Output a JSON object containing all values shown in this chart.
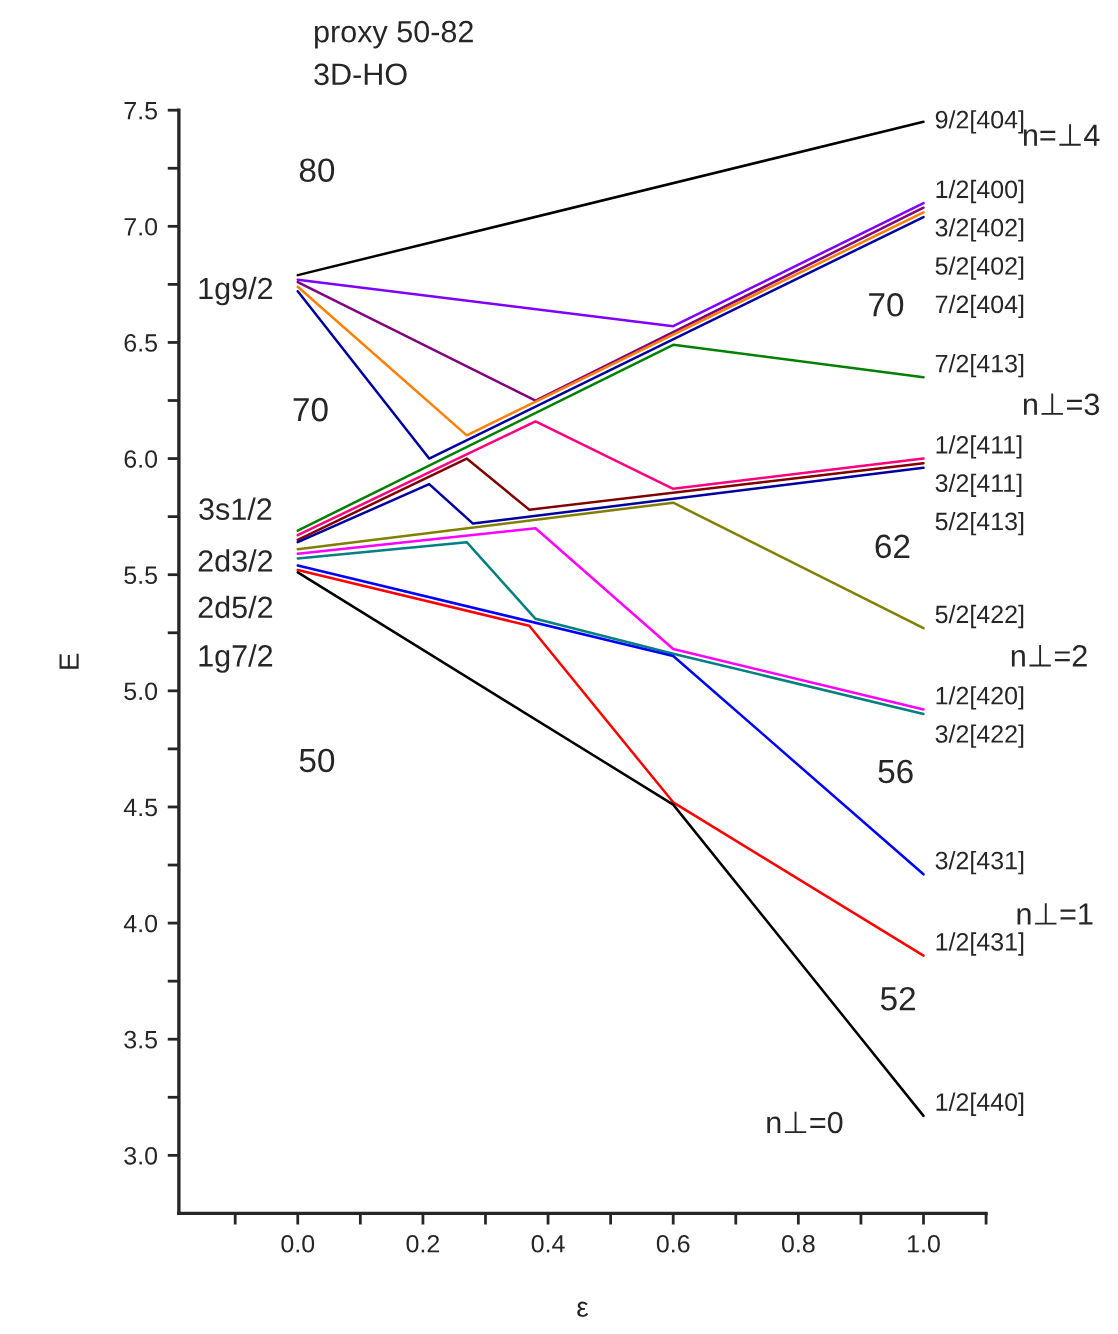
{
  "chart_data": {
    "type": "line",
    "xlabel": "ε",
    "ylabel": "E",
    "xlim": [
      -0.19,
      1.1
    ],
    "ylim": [
      2.75,
      7.5
    ],
    "xticks": [
      {
        "value": -0.1,
        "label": null
      },
      {
        "value": 0.0,
        "label": "0.0"
      },
      {
        "value": 0.1,
        "label": null
      },
      0.2,
      {
        "value": 0.3,
        "label": null
      },
      0.4,
      {
        "value": 0.5,
        "label": null
      },
      0.6,
      {
        "value": 0.7,
        "label": null
      },
      0.8,
      {
        "value": 0.9,
        "label": null
      },
      {
        "value": 1.0,
        "label": "1.0"
      },
      {
        "value": 1.1,
        "label": null
      }
    ],
    "yticks": [
      {
        "value": 3.0,
        "label": "3.0"
      },
      {
        "value": 3.25,
        "label": null
      },
      3.5,
      {
        "value": 3.75,
        "label": null
      },
      {
        "value": 4.0,
        "label": "4.0"
      },
      {
        "value": 4.25,
        "label": null
      },
      4.5,
      {
        "value": 4.75,
        "label": null
      },
      {
        "value": 5.0,
        "label": "5.0"
      },
      {
        "value": 5.25,
        "label": null
      },
      5.5,
      {
        "value": 5.75,
        "label": null
      },
      {
        "value": 6.0,
        "label": "6.0"
      },
      {
        "value": 6.25,
        "label": null
      },
      6.5,
      {
        "value": 6.75,
        "label": null
      },
      {
        "value": 7.0,
        "label": "7.0"
      },
      {
        "value": 7.25,
        "label": null
      },
      7.5
    ],
    "grid": false,
    "legend": false,
    "marker": "none",
    "line_style": "solid",
    "series": [
      {
        "name": "9/2[404]",
        "color": "#000000",
        "x": [
          0,
          1
        ],
        "values": [
          6.79,
          7.45
        ]
      },
      {
        "name": "1/2[400]",
        "color": "#8000ff",
        "x": [
          0,
          0.6,
          1
        ],
        "values": [
          6.77,
          6.57,
          7.1
        ]
      },
      {
        "name": "3/2[402]",
        "color": "#800080",
        "x": [
          0,
          0.38,
          1
        ],
        "values": [
          6.76,
          6.25,
          7.08
        ]
      },
      {
        "name": "5/2[402]",
        "color": "#ff8000",
        "x": [
          0,
          0.27,
          1
        ],
        "values": [
          6.74,
          6.1,
          7.06
        ]
      },
      {
        "name": "7/2[404]",
        "color": "#0000a0",
        "x": [
          0,
          0.21,
          1
        ],
        "values": [
          6.72,
          6.0,
          7.04
        ]
      },
      {
        "name": "7/2[413]",
        "color": "#008000",
        "x": [
          0,
          0.6,
          1
        ],
        "values": [
          5.69,
          6.49,
          6.35
        ]
      },
      {
        "name": "1/2[411]",
        "color": "#ff0080",
        "x": [
          0,
          0.38,
          0.6,
          1
        ],
        "values": [
          5.67,
          6.16,
          5.87,
          6.0
        ]
      },
      {
        "name": "3/2[411]",
        "color": "#800000",
        "x": [
          0,
          0.27,
          0.37,
          1
        ],
        "values": [
          5.65,
          6.0,
          5.78,
          5.98
        ]
      },
      {
        "name": "5/2[413]",
        "color": "#0000a0",
        "x": [
          0,
          0.21,
          0.28,
          1
        ],
        "values": [
          5.64,
          5.89,
          5.72,
          5.96
        ]
      },
      {
        "name": "5/2[422]",
        "color": "#808000",
        "x": [
          0,
          0.6,
          1
        ],
        "values": [
          5.61,
          5.81,
          5.27
        ]
      },
      {
        "name": "1/2[420]",
        "color": "#ff00ff",
        "x": [
          0,
          0.38,
          0.6,
          1
        ],
        "values": [
          5.59,
          5.7,
          5.18,
          4.92
        ]
      },
      {
        "name": "3/2[422]",
        "color": "#008080",
        "x": [
          0,
          0.27,
          0.38,
          0.6,
          1
        ],
        "values": [
          5.57,
          5.64,
          5.31,
          5.16,
          4.9
        ]
      },
      {
        "name": "3/2[431]",
        "color": "#0000ff",
        "x": [
          0,
          0.6,
          1
        ],
        "values": [
          5.54,
          5.15,
          4.21
        ]
      },
      {
        "name": "1/2[431]",
        "color": "#ff0000",
        "x": [
          0,
          0.37,
          0.6,
          1
        ],
        "values": [
          5.52,
          5.28,
          4.52,
          3.86
        ]
      },
      {
        "name": "1/2[440]",
        "color": "#000000",
        "x": [
          0,
          0.6,
          1
        ],
        "values": [
          5.51,
          4.51,
          3.17
        ]
      }
    ],
    "annotations": [
      "proxy 50-82",
      "3D-HO",
      "1g9/2",
      "3s1/2",
      "2d3/2",
      "2d5/2",
      "1g7/2",
      "80",
      "70",
      "50",
      "70",
      "62",
      "56",
      "52",
      "n⊥=0",
      "n=⊥4",
      "n⊥=3",
      "n⊥=2",
      "n⊥=1"
    ]
  }
}
